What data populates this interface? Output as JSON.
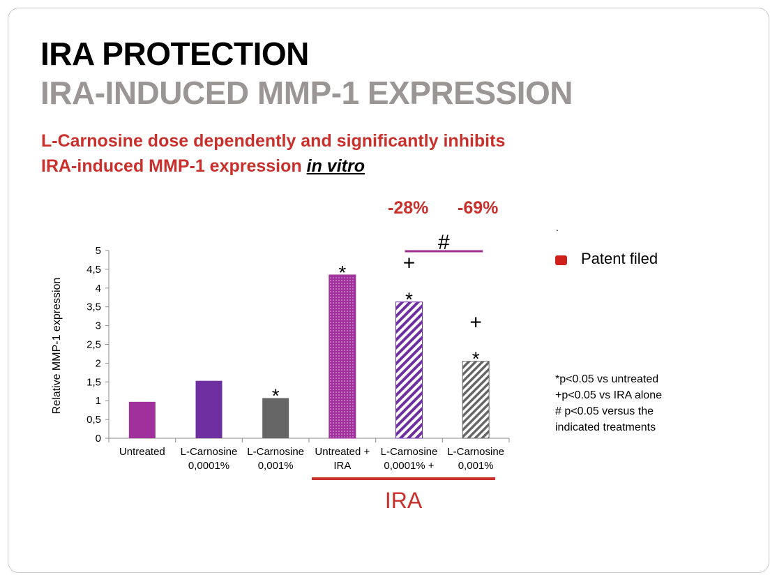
{
  "slide": {
    "title": "IRA PROTECTION",
    "subtitle": "IRA-INDUCED MMP-1 EXPRESSION",
    "lead_line1": "L-Carnosine dose dependently and significantly inhibits",
    "lead_line2_prefix": "IRA-induced MMP-1 expression ",
    "lead_line2_emph": "in vitro",
    "pct_left": "-28%",
    "pct_right": "-69%",
    "dot": ".",
    "legend_label": "Patent filed",
    "notes": [
      "*p<0.05 vs untreated",
      "+p<0.05 vs IRA alone",
      "# p<0.05 versus the",
      "indicated treatments"
    ],
    "hash_label": "#",
    "ira_label": "IRA"
  },
  "chart_data": {
    "type": "bar",
    "ylabel": "Relative MMP-1 expression",
    "ylim": [
      0,
      5
    ],
    "yticks": [
      "0",
      "0,5",
      "1",
      "1,5",
      "2",
      "2,5",
      "3",
      "3,5",
      "4",
      "4,5",
      "5"
    ],
    "categories": [
      [
        "Untreated"
      ],
      [
        "L-Carnosine",
        "0,0001%"
      ],
      [
        "L-Carnosine",
        "0,001%"
      ],
      [
        "Untreated +",
        "IRA"
      ],
      [
        "L-Carnosine",
        "0,0001% +"
      ],
      [
        "L-Carnosine",
        "0,001%"
      ]
    ],
    "values": [
      0.97,
      1.53,
      1.07,
      4.35,
      3.63,
      2.05
    ],
    "colors": [
      "#a0309b",
      "#6e2fa0",
      "#666666",
      "#a0309b",
      "#6e2fa0",
      "#666666"
    ],
    "patterns": [
      "solid",
      "solid",
      "solid",
      "dots",
      "diag",
      "diag"
    ],
    "annotations": [
      {
        "index": 2,
        "lines": [
          "*"
        ]
      },
      {
        "index": 3,
        "lines": [
          "*"
        ]
      },
      {
        "index": 4,
        "lines": [
          "+",
          "*"
        ]
      },
      {
        "index": 5,
        "lines": [
          "+",
          "*"
        ]
      }
    ],
    "accent_purple": "#9a2d8e",
    "accent_red": "#c9302c",
    "grid": false
  }
}
